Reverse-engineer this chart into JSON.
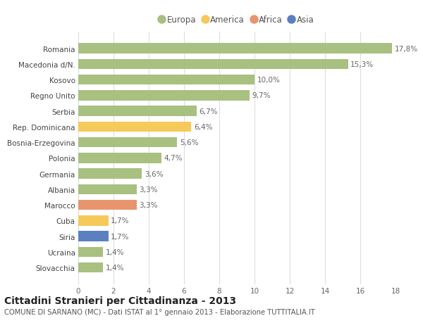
{
  "categories": [
    "Slovacchia",
    "Ucraina",
    "Siria",
    "Cuba",
    "Marocco",
    "Albania",
    "Germania",
    "Polonia",
    "Bosnia-Erzegovina",
    "Rep. Dominicana",
    "Serbia",
    "Regno Unito",
    "Kosovo",
    "Macedonia d/N.",
    "Romania"
  ],
  "values": [
    1.4,
    1.4,
    1.7,
    1.7,
    3.3,
    3.3,
    3.6,
    4.7,
    5.6,
    6.4,
    6.7,
    9.7,
    10.0,
    15.3,
    17.8
  ],
  "bar_colors": [
    "#a8c080",
    "#a8c080",
    "#5b80bf",
    "#f5ca5a",
    "#e8956e",
    "#a8c080",
    "#a8c080",
    "#a8c080",
    "#a8c080",
    "#f5ca5a",
    "#a8c080",
    "#a8c080",
    "#a8c080",
    "#a8c080",
    "#a8c080"
  ],
  "labels": [
    "1,4%",
    "1,4%",
    "1,7%",
    "1,7%",
    "3,3%",
    "3,3%",
    "3,6%",
    "4,7%",
    "5,6%",
    "6,4%",
    "6,7%",
    "9,7%",
    "10,0%",
    "15,3%",
    "17,8%"
  ],
  "legend": [
    {
      "label": "Europa",
      "color": "#a8c080"
    },
    {
      "label": "America",
      "color": "#f5ca5a"
    },
    {
      "label": "Africa",
      "color": "#e8956e"
    },
    {
      "label": "Asia",
      "color": "#5b80bf"
    }
  ],
  "xlim": [
    0,
    18
  ],
  "xticks": [
    0,
    2,
    4,
    6,
    8,
    10,
    12,
    14,
    16,
    18
  ],
  "title": "Cittadini Stranieri per Cittadinanza - 2013",
  "subtitle": "COMUNE DI SARNANO (MC) - Dati ISTAT al 1° gennaio 2013 - Elaborazione TUTTITALIA.IT",
  "bg_color": "#ffffff",
  "grid_color": "#dddddd",
  "bar_height": 0.65,
  "label_fontsize": 7.5,
  "tick_fontsize": 7.5,
  "title_fontsize": 10,
  "subtitle_fontsize": 7.2
}
